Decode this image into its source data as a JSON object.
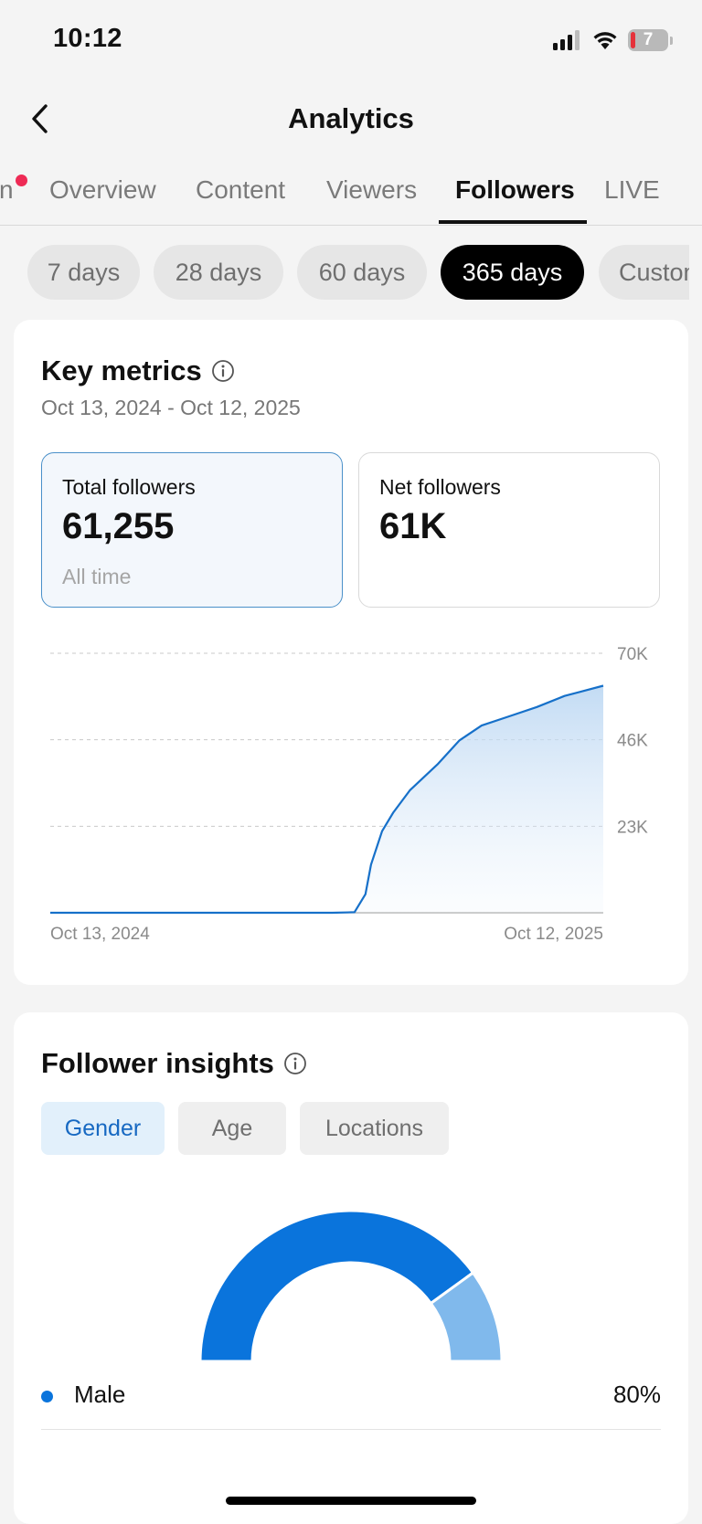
{
  "status_bar": {
    "time": "10:12",
    "battery_level": "7"
  },
  "header": {
    "title": "Analytics"
  },
  "tabs": [
    {
      "label": "n"
    },
    {
      "label": "Overview"
    },
    {
      "label": "Content"
    },
    {
      "label": "Viewers"
    },
    {
      "label": "Followers",
      "active": true
    },
    {
      "label": "LIVE"
    }
  ],
  "date_ranges": [
    {
      "label": "7 days"
    },
    {
      "label": "28 days"
    },
    {
      "label": "60 days"
    },
    {
      "label": "365 days",
      "active": true
    },
    {
      "label": "Custom"
    }
  ],
  "key_metrics": {
    "title": "Key metrics",
    "date_range": "Oct 13, 2024 - Oct 12, 2025",
    "total_followers": {
      "label": "Total followers",
      "value": "61,255",
      "sub": "All time"
    },
    "net_followers": {
      "label": "Net followers",
      "value": "61K"
    }
  },
  "chart_data": {
    "type": "area",
    "x_start_label": "Oct 13, 2024",
    "x_end_label": "Oct 12, 2025",
    "y_tick_labels": [
      "70K",
      "46K",
      "23K"
    ],
    "ylim": [
      0,
      70000
    ],
    "grid": "horizontal dashed",
    "color": "#1670c9",
    "x": [
      0,
      0.51,
      0.55,
      0.57,
      0.58,
      0.6,
      0.62,
      0.65,
      0.7,
      0.74,
      0.78,
      0.83,
      0.88,
      0.93,
      1.0
    ],
    "values": [
      0,
      0,
      150,
      5000,
      13000,
      22000,
      27000,
      33000,
      40000,
      46500,
      50500,
      53000,
      55500,
      58500,
      61255
    ]
  },
  "insights": {
    "title": "Follower insights",
    "tabs": [
      {
        "label": "Gender",
        "active": true
      },
      {
        "label": "Age"
      },
      {
        "label": "Locations"
      }
    ],
    "gender_chart": {
      "type": "pie",
      "segments": [
        {
          "name": "Male",
          "value": 80,
          "color": "#0a74dc"
        },
        {
          "value": 20,
          "color": "#80b9ec"
        }
      ]
    },
    "legend": [
      {
        "label": "Male",
        "value": "80%",
        "color": "#0a74dc"
      }
    ]
  }
}
